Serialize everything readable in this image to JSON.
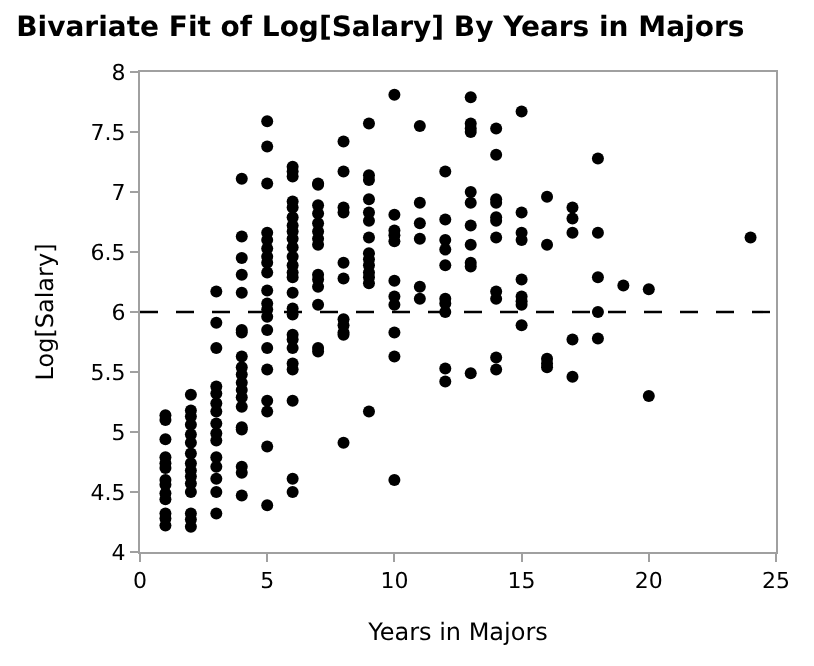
{
  "chart_data": {
    "type": "scatter",
    "title": "Bivariate Fit of Log[Salary] By Years in Majors",
    "xlabel": "Years in Majors",
    "ylabel": "Log[Salary]",
    "series": [
      {
        "color": "#000000",
        "x": [
          1,
          1,
          1,
          1,
          1,
          1,
          1,
          1,
          1,
          1,
          1,
          1,
          1,
          2,
          2,
          2,
          2,
          2,
          2,
          2,
          2,
          2,
          2,
          2,
          2,
          2,
          2,
          2,
          3,
          3,
          3,
          3,
          3,
          3,
          3,
          3,
          3,
          3,
          3,
          3,
          3,
          3,
          3,
          4,
          4,
          4,
          4,
          4,
          4,
          4,
          4,
          4,
          4,
          4,
          4,
          4,
          4,
          4,
          4,
          4,
          4,
          4,
          5,
          5,
          5,
          5,
          5,
          5,
          5,
          5,
          5,
          5,
          5,
          5,
          5,
          5,
          5,
          5,
          5,
          5,
          5,
          5,
          6,
          6,
          6,
          6,
          6,
          6,
          6,
          6,
          6,
          6,
          6,
          6,
          6,
          6,
          6,
          6,
          6,
          6,
          6,
          6,
          6,
          6,
          6,
          6,
          6,
          7,
          7,
          7,
          7,
          7,
          7,
          7,
          7,
          7,
          7,
          7,
          7,
          7,
          7,
          8,
          8,
          8,
          8,
          8,
          8,
          8,
          8,
          8,
          8,
          8,
          9,
          9,
          9,
          9,
          9,
          9,
          9,
          9,
          9,
          9,
          9,
          9,
          9,
          9,
          10,
          10,
          10,
          10,
          10,
          10,
          10,
          10,
          10,
          10,
          10,
          11,
          11,
          11,
          11,
          11,
          11,
          12,
          12,
          12,
          12,
          12,
          12,
          12,
          12,
          12,
          12,
          13,
          13,
          13,
          13,
          13,
          13,
          13,
          13,
          13,
          13,
          13,
          14,
          14,
          14,
          14,
          14,
          14,
          14,
          14,
          14,
          14,
          14,
          15,
          15,
          15,
          15,
          15,
          15,
          15,
          15,
          15,
          16,
          16,
          16,
          16,
          16,
          17,
          17,
          17,
          17,
          17,
          18,
          18,
          18,
          18,
          18,
          19,
          20,
          20,
          24
        ],
        "values": [
          5.14,
          5.1,
          4.94,
          4.79,
          4.74,
          4.7,
          4.6,
          4.56,
          4.49,
          4.44,
          4.32,
          4.28,
          4.22,
          5.31,
          5.18,
          5.13,
          5.06,
          4.98,
          4.91,
          4.82,
          4.74,
          4.68,
          4.63,
          4.57,
          4.5,
          4.32,
          4.27,
          4.21,
          6.17,
          5.91,
          5.7,
          5.38,
          5.32,
          5.24,
          5.17,
          5.07,
          4.99,
          4.93,
          4.79,
          4.71,
          4.61,
          4.5,
          4.32,
          7.11,
          6.63,
          6.45,
          6.31,
          6.16,
          5.85,
          5.83,
          5.63,
          5.54,
          5.48,
          5.41,
          5.35,
          5.29,
          5.21,
          5.04,
          5.02,
          4.71,
          4.66,
          4.47,
          7.59,
          7.38,
          7.07,
          6.66,
          6.6,
          6.53,
          6.46,
          6.41,
          6.33,
          6.18,
          6.07,
          6.02,
          5.96,
          5.85,
          5.7,
          5.52,
          5.26,
          5.17,
          4.88,
          4.39,
          7.21,
          7.17,
          7.13,
          6.92,
          6.87,
          6.79,
          6.72,
          6.67,
          6.61,
          6.54,
          6.46,
          6.39,
          6.33,
          6.29,
          6.16,
          6.03,
          5.98,
          5.81,
          5.77,
          5.7,
          5.57,
          5.52,
          5.26,
          4.61,
          4.5,
          7.07,
          7.06,
          6.89,
          6.82,
          6.74,
          6.67,
          6.61,
          6.56,
          6.31,
          6.27,
          6.21,
          6.06,
          5.7,
          5.67,
          7.42,
          7.17,
          6.87,
          6.83,
          6.41,
          6.28,
          5.94,
          5.89,
          5.83,
          5.81,
          4.91,
          7.57,
          7.14,
          7.1,
          6.94,
          6.83,
          6.76,
          6.62,
          6.49,
          6.44,
          6.39,
          6.33,
          6.29,
          6.24,
          5.17,
          7.81,
          6.81,
          6.68,
          6.64,
          6.59,
          6.26,
          6.13,
          6.06,
          5.83,
          5.63,
          4.6,
          7.55,
          6.91,
          6.74,
          6.61,
          6.21,
          6.11,
          7.17,
          6.77,
          6.6,
          6.52,
          6.39,
          6.11,
          6.07,
          6.0,
          5.53,
          5.42,
          7.79,
          7.57,
          7.53,
          7.5,
          7.0,
          6.91,
          6.72,
          6.56,
          6.41,
          6.38,
          5.49,
          7.53,
          7.31,
          6.94,
          6.91,
          6.79,
          6.76,
          6.62,
          6.17,
          6.11,
          5.62,
          5.52,
          7.67,
          6.83,
          6.66,
          6.6,
          6.27,
          6.13,
          6.09,
          6.06,
          5.89,
          6.96,
          6.56,
          5.61,
          5.57,
          5.54,
          6.87,
          6.78,
          6.66,
          5.77,
          5.46,
          7.28,
          6.66,
          6.29,
          6.0,
          5.78,
          6.22,
          6.19,
          5.3,
          6.62
        ]
      }
    ],
    "marker": "circle",
    "xlim": [
      0,
      25
    ],
    "xticks": [
      0,
      5,
      10,
      15,
      20,
      25
    ],
    "ylim": [
      4,
      8
    ],
    "yticks": [
      4,
      4.5,
      5,
      5.5,
      6,
      6.5,
      7,
      7.5,
      8
    ],
    "ref_lines": [
      {
        "axis": "y",
        "value": 6,
        "color": "#000000",
        "line_style": "dashed"
      }
    ]
  }
}
